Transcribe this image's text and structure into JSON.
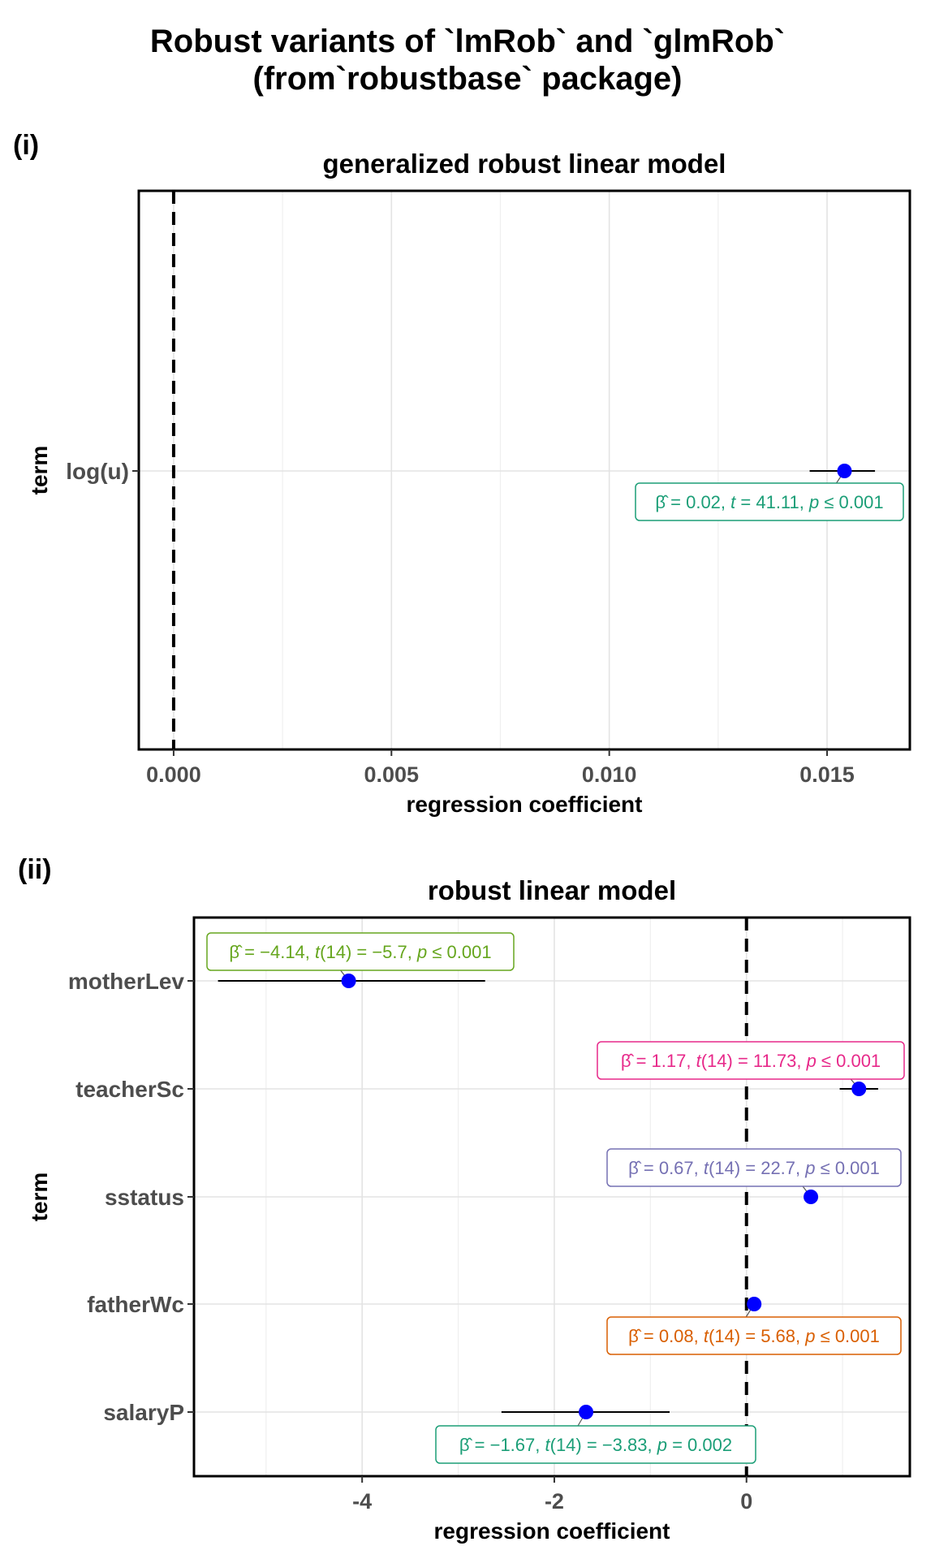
{
  "title": {
    "line1": "Robust variants of `lmRob` and `glmRob`",
    "line2": "(from`robustbase` package)"
  },
  "chart_data": [
    {
      "tag": "(i)",
      "type": "scatter",
      "title": "generalized robust linear model",
      "xlabel": "regression coefficient",
      "ylabel": "term",
      "xlim": [
        -0.0008,
        0.0169
      ],
      "xticks": [
        "0.000",
        "0.005",
        "0.010",
        "0.015"
      ],
      "xtick_values": [
        0,
        0.005,
        0.01,
        0.015
      ],
      "reference_line": 0,
      "grid": true,
      "terms": [
        {
          "term": "log(u)",
          "estimate": 0.0154,
          "conf_low": 0.0146,
          "conf_high": 0.0161,
          "label": {
            "beta": "0.02",
            "stat": "t",
            "df": "",
            "stat_value": "41.11",
            "p_op": "≤",
            "p": "0.001"
          },
          "label_color": "#1b9e77"
        }
      ]
    },
    {
      "tag": "(ii)",
      "type": "scatter",
      "title": "robust linear model",
      "xlabel": "regression coefficient",
      "ylabel": "term",
      "xlim": [
        -5.75,
        1.7
      ],
      "xticks": [
        "-4",
        "-2",
        "0"
      ],
      "xtick_values": [
        -4,
        -2,
        0
      ],
      "reference_line": 0,
      "grid": true,
      "terms": [
        {
          "term": "motherLev",
          "estimate": -4.14,
          "conf_low": -5.5,
          "conf_high": -2.72,
          "label": {
            "beta": "−4.14",
            "stat": "t",
            "df": "(14)",
            "stat_value": "−5.7",
            "p_op": "≤",
            "p": "0.001"
          },
          "label_color": "#66a61e"
        },
        {
          "term": "teacherSc",
          "estimate": 1.17,
          "conf_low": 0.97,
          "conf_high": 1.37,
          "label": {
            "beta": "1.17",
            "stat": "t",
            "df": "(14)",
            "stat_value": "11.73",
            "p_op": "≤",
            "p": "0.001"
          },
          "label_color": "#e7298a"
        },
        {
          "term": "sstatus",
          "estimate": 0.67,
          "conf_low": 0.61,
          "conf_high": 0.73,
          "label": {
            "beta": "0.67",
            "stat": "t",
            "df": "(14)",
            "stat_value": "22.7",
            "p_op": "≤",
            "p": "0.001"
          },
          "label_color": "#7570b3"
        },
        {
          "term": "fatherWc",
          "estimate": 0.08,
          "conf_low": 0.05,
          "conf_high": 0.11,
          "label": {
            "beta": "0.08",
            "stat": "t",
            "df": "(14)",
            "stat_value": "5.68",
            "p_op": "≤",
            "p": "0.001"
          },
          "label_color": "#d95f02"
        },
        {
          "term": "salaryP",
          "estimate": -1.67,
          "conf_low": -2.55,
          "conf_high": -0.8,
          "label": {
            "beta": "−1.67",
            "stat": "t",
            "df": "(14)",
            "stat_value": "−3.83",
            "p_op": "=",
            "p": "0.002"
          },
          "label_color": "#1b9e77"
        }
      ]
    }
  ]
}
